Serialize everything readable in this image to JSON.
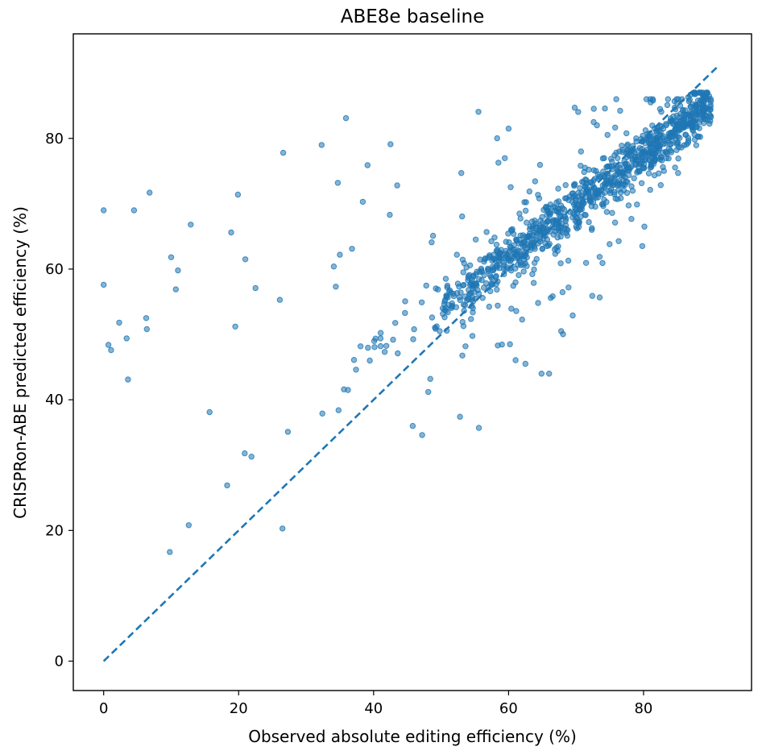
{
  "chart_data": {
    "type": "scatter",
    "title": "ABE8e baseline",
    "xlabel": "Observed absolute editing efficiency (%)",
    "ylabel": "CRISPRon-ABE predicted efficiency (%)",
    "xlim": [
      -4.5,
      96
    ],
    "ylim": [
      -4.5,
      96
    ],
    "xticks": [
      0,
      20,
      40,
      60,
      80
    ],
    "yticks": [
      0,
      20,
      40,
      60,
      80
    ],
    "grid": false,
    "legend": false,
    "point_color": "#1f77b4",
    "point_alpha": 0.55,
    "reference_line": {
      "style": "dashed",
      "color": "#1f77b4",
      "from": [
        0,
        0
      ],
      "to": [
        91,
        91
      ]
    },
    "outliers": {
      "x": [
        0.0,
        0.0,
        0.7,
        1.1,
        2.3,
        3.4,
        3.6,
        4.5,
        6.3,
        6.4,
        6.8,
        9.8,
        10.0,
        10.7,
        11.0,
        12.6,
        12.9,
        15.7,
        18.3,
        18.9,
        19.5,
        19.9,
        20.9,
        21.0,
        21.9,
        22.5,
        26.1,
        26.5,
        26.6,
        27.3,
        32.3,
        32.4,
        34.1,
        34.4,
        34.7,
        34.8,
        35.0,
        35.6,
        35.9,
        36.2,
        36.8,
        37.1,
        37.4,
        38.4,
        39.1,
        42.4,
        42.5,
        43.5,
        45.8,
        47.2,
        48.1,
        48.4,
        48.6,
        48.8,
        52.8,
        53.0,
        55.6,
        58.4,
        60.0,
        60.2,
        62.5,
        67.8,
        69.5,
        69.8,
        72.4,
        72.6,
        73.1
      ],
      "y": [
        69.0,
        57.6,
        48.4,
        47.6,
        51.8,
        49.4,
        43.1,
        69.0,
        52.5,
        50.8,
        71.7,
        16.7,
        61.8,
        56.9,
        59.8,
        20.8,
        66.8,
        38.1,
        26.9,
        65.6,
        51.2,
        71.4,
        31.8,
        61.5,
        31.3,
        57.1,
        55.3,
        20.3,
        77.8,
        35.1,
        79.0,
        37.9,
        60.4,
        57.3,
        73.2,
        38.4,
        62.2,
        41.6,
        83.1,
        41.5,
        63.1,
        46.1,
        44.6,
        70.3,
        75.9,
        68.3,
        79.1,
        72.8,
        36.0,
        34.6,
        41.2,
        43.2,
        64.1,
        65.1,
        37.4,
        74.7,
        35.7,
        48.3,
        81.5,
        48.5,
        45.5,
        50.5,
        52.9,
        84.7,
        55.9,
        82.5,
        82.0
      ]
    }
  }
}
